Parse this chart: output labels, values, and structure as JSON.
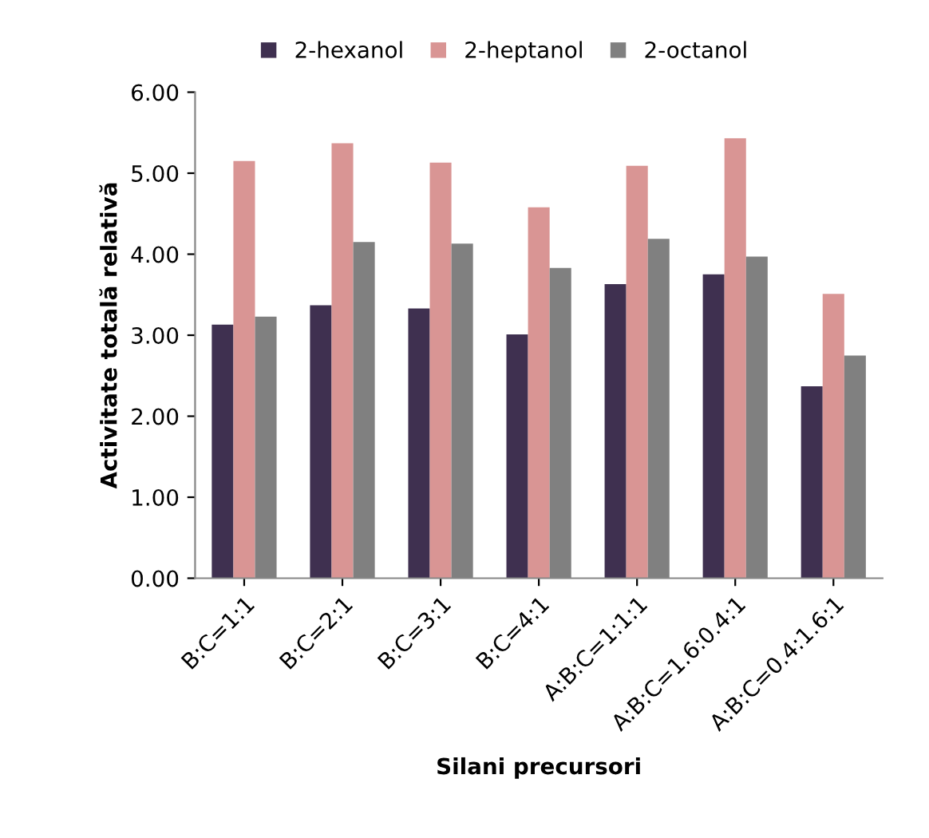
{
  "chart_data": {
    "type": "bar",
    "xlabel": "Silani precursori",
    "ylabel": "Activitate totală relativă",
    "categories": [
      "B:C=1:1",
      "B:C=2:1",
      "B:C=3:1",
      "B:C=4:1",
      "A:B:C=1:1:1",
      "A:B:C=1.6:0.4:1",
      "A:B:C=0.4:1.6:1"
    ],
    "series": [
      {
        "name": "2-hexanol",
        "color": "#3f3050",
        "values": [
          3.13,
          3.37,
          3.33,
          3.01,
          3.63,
          3.75,
          2.37
        ]
      },
      {
        "name": "2-heptanol",
        "color": "#d99594",
        "values": [
          5.15,
          5.37,
          5.13,
          4.58,
          5.09,
          5.43,
          3.51
        ]
      },
      {
        "name": "2-octanol",
        "color": "#808080",
        "values": [
          3.23,
          4.15,
          4.13,
          3.83,
          4.19,
          3.97,
          2.75
        ]
      }
    ],
    "ylim": [
      0,
      6
    ],
    "yticks": [
      {
        "value": 0,
        "label": "0.00"
      },
      {
        "value": 1,
        "label": "1.00"
      },
      {
        "value": 2,
        "label": "2.00"
      },
      {
        "value": 3,
        "label": "3.00"
      },
      {
        "value": 4,
        "label": "4.00"
      },
      {
        "value": 5,
        "label": "5.00"
      },
      {
        "value": 6,
        "label": "6.00"
      }
    ],
    "grid": false,
    "legend": "top"
  }
}
